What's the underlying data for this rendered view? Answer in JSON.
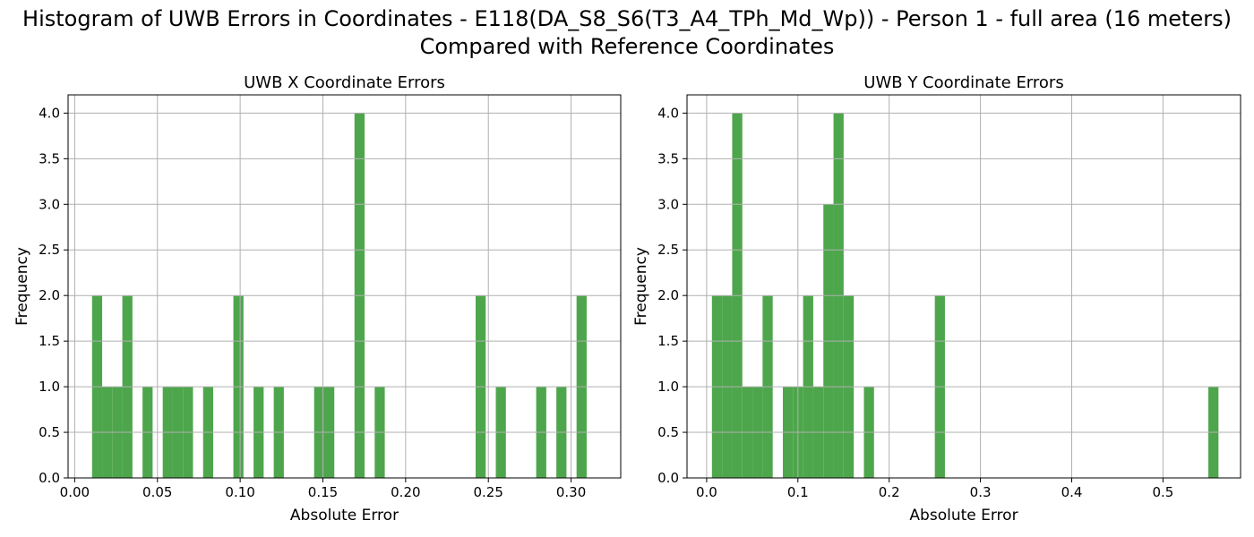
{
  "figure": {
    "title_lines": [
      "Histogram of UWB Errors in Coordinates - E118(DA_S8_S6(T3_A4_TPh_Md_Wp)) - Person 1 - full area (16 meters)",
      "Compared with Reference Coordinates"
    ],
    "bar_color": "#4ea64c",
    "grid_color": "#b0b0b0"
  },
  "chart_data": [
    {
      "type": "bar",
      "title": "UWB X Coordinate Errors",
      "xlabel": "Absolute Error",
      "ylabel": "Frequency",
      "xlim": [
        -0.004,
        0.33
      ],
      "ylim": [
        0,
        4.2
      ],
      "xticks": [
        0.0,
        0.05,
        0.1,
        0.15,
        0.2,
        0.25,
        0.3
      ],
      "xtick_labels": [
        "0.00",
        "0.05",
        "0.10",
        "0.15",
        "0.20",
        "0.25",
        "0.30"
      ],
      "yticks": [
        0,
        0.5,
        1,
        1.5,
        2,
        2.5,
        3,
        3.5,
        4
      ],
      "ytick_labels": [
        "0.0",
        "0.5",
        "1.0",
        "1.5",
        "2.0",
        "2.5",
        "3.0",
        "3.5",
        "4.0"
      ],
      "grid": true,
      "bin_range": [
        0.0105,
        0.3155
      ],
      "bin_width": 0.0061,
      "counts": [
        2,
        1,
        1,
        2,
        0,
        1,
        0,
        1,
        1,
        1,
        0,
        1,
        0,
        0,
        2,
        0,
        1,
        0,
        1,
        0,
        0,
        0,
        1,
        1,
        0,
        0,
        4,
        0,
        1,
        0,
        0,
        0,
        0,
        0,
        0,
        0,
        0,
        0,
        2,
        0,
        1,
        0,
        0,
        0,
        1,
        0,
        1,
        0,
        2,
        0
      ]
    },
    {
      "type": "bar",
      "title": "UWB Y Coordinate Errors",
      "xlabel": "Absolute Error",
      "ylabel": "Frequency",
      "xlim": [
        -0.0215,
        0.585
      ],
      "ylim": [
        0,
        4.2
      ],
      "xticks": [
        0.0,
        0.1,
        0.2,
        0.3,
        0.4,
        0.5
      ],
      "xtick_labels": [
        "0.0",
        "0.1",
        "0.2",
        "0.3",
        "0.4",
        "0.5"
      ],
      "yticks": [
        0,
        0.5,
        1,
        1.5,
        2,
        2.5,
        3,
        3.5,
        4
      ],
      "ytick_labels": [
        "0.0",
        "0.5",
        "1.0",
        "1.5",
        "2.0",
        "2.5",
        "3.0",
        "3.5",
        "4.0"
      ],
      "grid": true,
      "bin_range": [
        0.0058,
        0.5608
      ],
      "bin_width": 0.0111,
      "counts": [
        2,
        2,
        4,
        1,
        1,
        2,
        0,
        1,
        1,
        2,
        1,
        3,
        4,
        2,
        0,
        1,
        0,
        0,
        0,
        0,
        0,
        0,
        2,
        0,
        0,
        0,
        0,
        0,
        0,
        0,
        0,
        0,
        0,
        0,
        0,
        0,
        0,
        0,
        0,
        0,
        0,
        0,
        0,
        0,
        0,
        0,
        0,
        0,
        0,
        1
      ]
    }
  ]
}
